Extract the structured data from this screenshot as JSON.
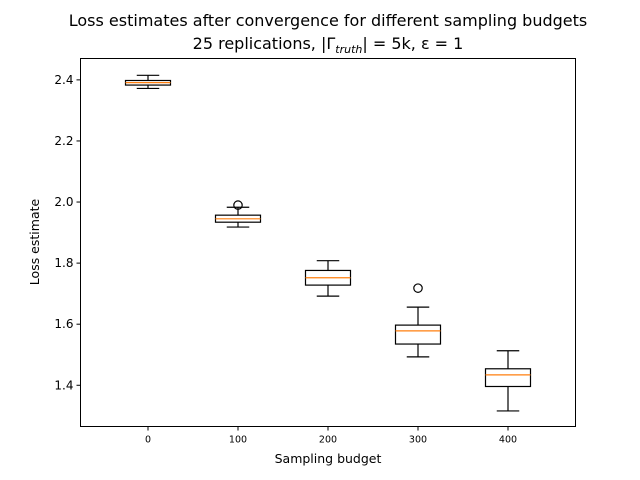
{
  "chart_data": {
    "type": "boxplot",
    "title": "Loss estimates after convergence for different sampling budgets",
    "subtitle_parts": {
      "prefix": "25 replications, |Γ",
      "subscript": "truth",
      "suffix": "| = 5k, ε = 1"
    },
    "xlabel": "Sampling budget",
    "ylabel": "Loss estimate",
    "ylim": [
      1.265,
      2.47
    ],
    "yticks": [
      1.4,
      1.6,
      1.8,
      2.0,
      2.2,
      2.4
    ],
    "ytick_labels": [
      "1.4",
      "1.6",
      "1.8",
      "2.0",
      "2.2",
      "2.4"
    ],
    "categories": [
      "0",
      "100",
      "200",
      "300",
      "400"
    ],
    "boxes": [
      {
        "category": "0",
        "whisker_low": 2.372,
        "q1": 2.383,
        "median": 2.391,
        "q3": 2.398,
        "whisker_high": 2.415,
        "outliers": []
      },
      {
        "category": "100",
        "whisker_low": 1.918,
        "q1": 1.934,
        "median": 1.945,
        "q3": 1.957,
        "whisker_high": 1.983,
        "outliers": [
          1.99
        ]
      },
      {
        "category": "200",
        "whisker_low": 1.692,
        "q1": 1.728,
        "median": 1.752,
        "q3": 1.776,
        "whisker_high": 1.808,
        "outliers": []
      },
      {
        "category": "300",
        "whisker_low": 1.493,
        "q1": 1.535,
        "median": 1.578,
        "q3": 1.597,
        "whisker_high": 1.656,
        "outliers": [
          1.718
        ]
      },
      {
        "category": "400",
        "whisker_low": 1.316,
        "q1": 1.396,
        "median": 1.434,
        "q3": 1.454,
        "whisker_high": 1.513,
        "outliers": []
      }
    ],
    "colors": {
      "box": "#000000",
      "median": "#ff7f0e",
      "flier": "#000000",
      "axes": "#000000"
    },
    "grid": false
  }
}
